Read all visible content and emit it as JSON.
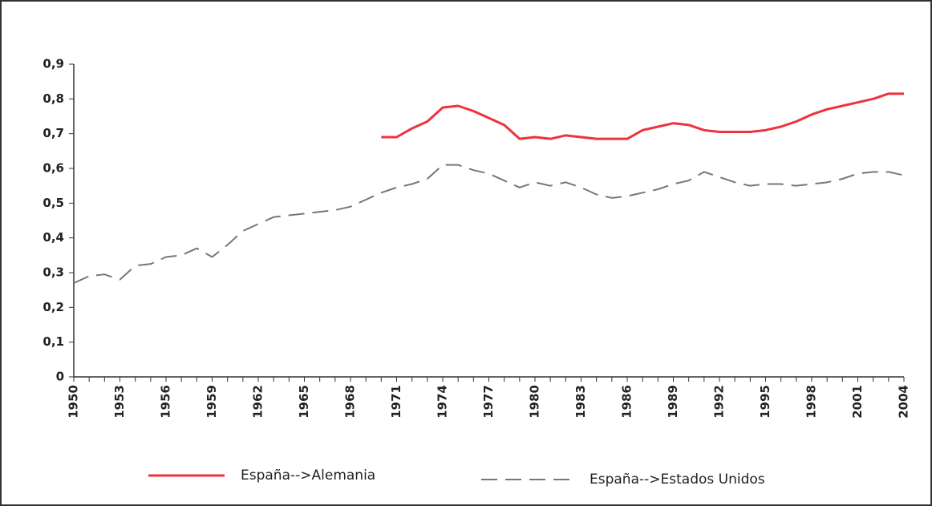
{
  "chart_data": {
    "type": "line",
    "x": [
      1950,
      1951,
      1952,
      1953,
      1954,
      1955,
      1956,
      1957,
      1958,
      1959,
      1960,
      1961,
      1962,
      1963,
      1964,
      1965,
      1966,
      1967,
      1968,
      1969,
      1970,
      1971,
      1972,
      1973,
      1974,
      1975,
      1976,
      1977,
      1978,
      1979,
      1980,
      1981,
      1982,
      1983,
      1984,
      1985,
      1986,
      1987,
      1988,
      1989,
      1990,
      1991,
      1992,
      1993,
      1994,
      1995,
      1996,
      1997,
      1998,
      1999,
      2000,
      2001,
      2002,
      2003,
      2004
    ],
    "series": [
      {
        "name": "España-->Alemania",
        "color": "#f0323c",
        "dash": false,
        "values": [
          null,
          null,
          null,
          null,
          null,
          null,
          null,
          null,
          null,
          null,
          null,
          null,
          null,
          null,
          null,
          null,
          null,
          null,
          null,
          null,
          0.69,
          0.69,
          0.715,
          0.735,
          0.775,
          0.78,
          0.765,
          0.745,
          0.725,
          0.685,
          0.69,
          0.685,
          0.695,
          0.69,
          0.685,
          0.685,
          0.685,
          0.71,
          0.72,
          0.73,
          0.725,
          0.71,
          0.705,
          0.705,
          0.705,
          0.71,
          0.72,
          0.735,
          0.755,
          0.77,
          0.78,
          0.79,
          0.8,
          0.815,
          0.815
        ]
      },
      {
        "name": "España-->Estados Unidos",
        "color": "#777777",
        "dash": true,
        "values": [
          0.27,
          0.29,
          0.295,
          0.28,
          0.32,
          0.325,
          0.345,
          0.35,
          0.37,
          0.345,
          0.38,
          0.42,
          0.44,
          0.46,
          0.465,
          0.47,
          0.475,
          0.48,
          0.49,
          0.51,
          0.53,
          0.545,
          0.555,
          0.57,
          0.61,
          0.61,
          0.595,
          0.585,
          0.565,
          0.545,
          0.56,
          0.55,
          0.56,
          0.545,
          0.525,
          0.515,
          0.52,
          0.53,
          0.54,
          0.555,
          0.565,
          0.59,
          0.575,
          0.56,
          0.55,
          0.555,
          0.555,
          0.55,
          0.555,
          0.56,
          0.57,
          0.585,
          0.59,
          0.59,
          0.58
        ]
      }
    ],
    "xlim": [
      1950,
      2004
    ],
    "xticks": [
      1950,
      1953,
      1956,
      1959,
      1962,
      1965,
      1968,
      1971,
      1974,
      1977,
      1980,
      1983,
      1986,
      1989,
      1992,
      1995,
      1998,
      2001,
      2004
    ],
    "ylim": [
      0,
      0.9
    ],
    "yticks": [
      0,
      {
        "value": 0.1,
        "label": "0,1"
      },
      {
        "value": 0.2,
        "label": "0,2"
      },
      {
        "value": 0.3,
        "label": "0,3"
      },
      {
        "value": 0.4,
        "label": "0,4"
      },
      {
        "value": 0.5,
        "label": "0,5"
      },
      {
        "value": 0.6,
        "label": "0,6"
      },
      {
        "value": 0.7,
        "label": "0,7"
      },
      {
        "value": 0.8,
        "label": "0,8"
      },
      {
        "value": 0.9,
        "label": "0,9"
      }
    ],
    "grid": false,
    "legend": "bottom"
  }
}
